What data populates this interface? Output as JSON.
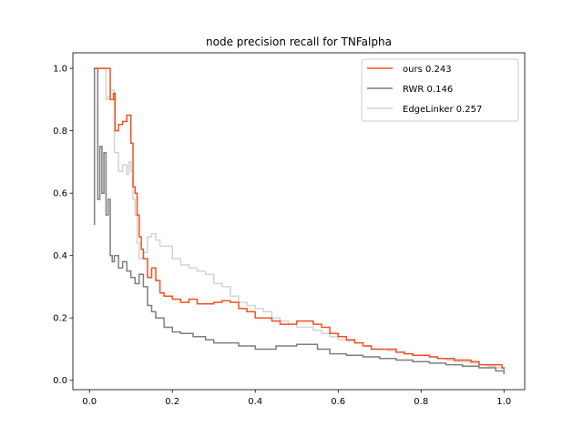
{
  "chart_data": {
    "type": "line",
    "title": "node precision recall for TNFalpha",
    "xlabel": "",
    "ylabel": "",
    "xlim": [
      -0.04,
      1.05
    ],
    "ylim": [
      -0.03,
      1.05
    ],
    "xticks": [
      0.0,
      0.2,
      0.4,
      0.6,
      0.8,
      1.0
    ],
    "xtick_labels": [
      "0.0",
      "0.2",
      "0.4",
      "0.6",
      "0.8",
      "1.0"
    ],
    "yticks": [
      0.0,
      0.2,
      0.4,
      0.6,
      0.8,
      1.0
    ],
    "ytick_labels": [
      "0.0",
      "0.2",
      "0.4",
      "0.6",
      "0.8",
      "1.0"
    ],
    "grid": false,
    "legend_position": "top-right",
    "step": "post",
    "series": [
      {
        "name": "ours 0.243",
        "color": "#f4511e",
        "x": [
          0.01,
          0.02,
          0.04,
          0.05,
          0.058,
          0.062,
          0.07,
          0.08,
          0.09,
          0.1,
          0.105,
          0.11,
          0.115,
          0.12,
          0.125,
          0.13,
          0.14,
          0.15,
          0.16,
          0.17,
          0.18,
          0.2,
          0.22,
          0.24,
          0.26,
          0.28,
          0.3,
          0.32,
          0.34,
          0.36,
          0.38,
          0.4,
          0.42,
          0.44,
          0.46,
          0.48,
          0.5,
          0.52,
          0.54,
          0.56,
          0.58,
          0.6,
          0.62,
          0.64,
          0.66,
          0.68,
          0.7,
          0.72,
          0.74,
          0.76,
          0.78,
          0.8,
          0.82,
          0.84,
          0.86,
          0.88,
          0.9,
          0.92,
          0.94,
          0.96,
          0.98,
          0.995,
          1.0
        ],
        "y": [
          1.0,
          1.0,
          1.0,
          0.9,
          0.92,
          0.8,
          0.82,
          0.83,
          0.85,
          0.76,
          0.62,
          0.6,
          0.53,
          0.46,
          0.42,
          0.39,
          0.33,
          0.36,
          0.32,
          0.28,
          0.27,
          0.26,
          0.25,
          0.26,
          0.245,
          0.245,
          0.25,
          0.255,
          0.25,
          0.23,
          0.22,
          0.2,
          0.2,
          0.19,
          0.18,
          0.18,
          0.19,
          0.19,
          0.18,
          0.17,
          0.15,
          0.14,
          0.13,
          0.12,
          0.11,
          0.1,
          0.1,
          0.1,
          0.09,
          0.085,
          0.08,
          0.08,
          0.075,
          0.07,
          0.07,
          0.065,
          0.065,
          0.06,
          0.05,
          0.05,
          0.05,
          0.04,
          0.035
        ]
      },
      {
        "name": "RWR 0.146",
        "color": "#7f7f7f",
        "x": [
          0.01,
          0.012,
          0.02,
          0.025,
          0.03,
          0.035,
          0.04,
          0.045,
          0.05,
          0.055,
          0.06,
          0.07,
          0.08,
          0.09,
          0.1,
          0.11,
          0.12,
          0.13,
          0.14,
          0.15,
          0.16,
          0.18,
          0.2,
          0.22,
          0.25,
          0.28,
          0.3,
          0.33,
          0.36,
          0.4,
          0.45,
          0.5,
          0.55,
          0.58,
          0.62,
          0.66,
          0.7,
          0.74,
          0.78,
          0.82,
          0.86,
          0.9,
          0.94,
          0.98,
          1.0
        ],
        "y": [
          0.5,
          1.0,
          0.58,
          0.75,
          0.6,
          0.73,
          0.53,
          0.58,
          0.4,
          0.38,
          0.4,
          0.36,
          0.38,
          0.35,
          0.33,
          0.31,
          0.34,
          0.3,
          0.24,
          0.22,
          0.2,
          0.17,
          0.155,
          0.15,
          0.14,
          0.13,
          0.12,
          0.12,
          0.11,
          0.1,
          0.11,
          0.115,
          0.1,
          0.085,
          0.08,
          0.075,
          0.07,
          0.065,
          0.06,
          0.055,
          0.05,
          0.045,
          0.04,
          0.03,
          0.02
        ]
      },
      {
        "name": "EdgeLinker 0.257",
        "color": "#d3d3d3",
        "x": [
          0.01,
          0.02,
          0.04,
          0.045,
          0.05,
          0.06,
          0.07,
          0.08,
          0.09,
          0.095,
          0.1,
          0.105,
          0.11,
          0.115,
          0.12,
          0.13,
          0.14,
          0.15,
          0.16,
          0.17,
          0.18,
          0.2,
          0.22,
          0.24,
          0.26,
          0.28,
          0.3,
          0.32,
          0.34,
          0.36,
          0.38,
          0.4,
          0.42,
          0.44,
          0.46,
          0.48,
          0.5,
          0.52,
          0.54,
          0.56,
          0.58,
          0.6,
          0.62,
          0.64,
          0.66,
          0.68,
          0.7,
          0.72,
          0.74,
          0.76,
          0.78,
          0.8,
          0.82,
          0.84,
          0.86,
          0.88,
          0.9,
          0.92,
          0.94,
          0.96,
          0.98,
          1.0
        ],
        "y": [
          1.0,
          1.0,
          0.9,
          0.91,
          0.93,
          0.73,
          0.67,
          0.69,
          0.66,
          0.7,
          0.67,
          0.58,
          0.53,
          0.44,
          0.39,
          0.41,
          0.46,
          0.47,
          0.45,
          0.43,
          0.43,
          0.39,
          0.37,
          0.36,
          0.35,
          0.34,
          0.31,
          0.3,
          0.27,
          0.25,
          0.24,
          0.23,
          0.22,
          0.2,
          0.19,
          0.18,
          0.17,
          0.17,
          0.16,
          0.15,
          0.14,
          0.13,
          0.125,
          0.12,
          0.11,
          0.1,
          0.1,
          0.095,
          0.09,
          0.085,
          0.08,
          0.08,
          0.075,
          0.07,
          0.065,
          0.06,
          0.06,
          0.055,
          0.05,
          0.045,
          0.04,
          0.03
        ]
      }
    ]
  }
}
